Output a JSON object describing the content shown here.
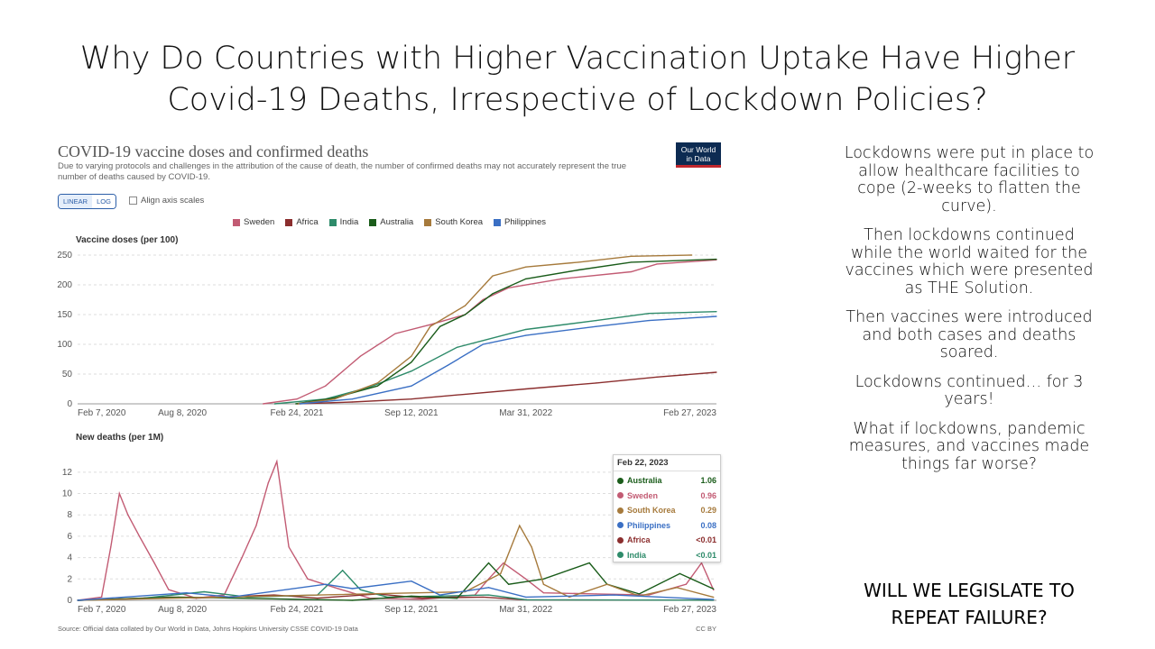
{
  "slide": {
    "title_line1": "Why Do Countries with Higher Vaccination Uptake Have Higher",
    "title_line2": "Covid-19 Deaths, Irrespective of Lockdown Policies?",
    "paragraphs": [
      "Lockdowns were put in place to allow healthcare facilities to cope (2-weeks to flatten the curve).",
      "Then lockdowns continued while the world waited for the vaccines which were presented as THE Solution.",
      "Then vaccines were introduced and both cases and deaths soared.",
      "Lockdowns continued… for 3 years!",
      "What if lockdowns, pandemic measures, and vaccines made things far worse?"
    ],
    "final_line1": "WILL WE LEGISLATE TO",
    "final_line2": "REPEAT FAILURE?"
  },
  "chart_panel": {
    "title": "COVID-19 vaccine doses and confirmed deaths",
    "subtitle": "Due to varying protocols and challenges in the attribution of the cause of death, the number of confirmed deaths may not accurately represent the true number of deaths caused by COVID-19.",
    "logo_line1": "Our World",
    "logo_line2": "in Data",
    "scale_linear": "LINEAR",
    "scale_log": "LOG",
    "align_axis_label": "Align axis scales",
    "source": "Source: Official data collated by Our World in Data, Johns Hopkins University CSSE COVID-19 Data",
    "license": "CC BY",
    "tooltip": {
      "date": "Feb 22, 2023",
      "rows": [
        {
          "name": "Australia",
          "value": "1.06",
          "color": "#1a5c1a"
        },
        {
          "name": "Sweden",
          "value": "0.96",
          "color": "#c25b73"
        },
        {
          "name": "South Korea",
          "value": "0.29",
          "color": "#a67a3c"
        },
        {
          "name": "Philippines",
          "value": "0.08",
          "color": "#3a6fc4"
        },
        {
          "name": "Africa",
          "value": "<0.01",
          "color": "#8b2e2e"
        },
        {
          "name": "India",
          "value": "<0.01",
          "color": "#2e8b6a"
        }
      ]
    }
  },
  "chart_data": [
    {
      "type": "line",
      "title": "Vaccine doses (per 100)",
      "x_ticks": [
        "Feb 7, 2020",
        "Aug 8, 2020",
        "Feb 24, 2021",
        "Sep 12, 2021",
        "Mar 31, 2022",
        "Feb 27, 2023"
      ],
      "x_range": [
        "2020-02-07",
        "2023-02-27"
      ],
      "ylim": [
        0,
        250
      ],
      "y_ticks": [
        0,
        50,
        100,
        150,
        200,
        250
      ],
      "grid": true,
      "series": [
        {
          "name": "Sweden",
          "color": "#c25b73",
          "points": [
            [
              "2020-12-27",
              0
            ],
            [
              "2021-02-24",
              8
            ],
            [
              "2021-04-15",
              30
            ],
            [
              "2021-06-15",
              80
            ],
            [
              "2021-08-15",
              118
            ],
            [
              "2021-10-15",
              133
            ],
            [
              "2021-12-15",
              150
            ],
            [
              "2022-01-15",
              175
            ],
            [
              "2022-03-01",
              195
            ],
            [
              "2022-06-01",
              210
            ],
            [
              "2022-10-01",
              222
            ],
            [
              "2022-11-15",
              235
            ],
            [
              "2023-02-27",
              242
            ]
          ]
        },
        {
          "name": "Africa",
          "color": "#8b2e2e",
          "points": [
            [
              "2021-02-24",
              0
            ],
            [
              "2021-06-01",
              3
            ],
            [
              "2021-09-12",
              8
            ],
            [
              "2021-12-15",
              16
            ],
            [
              "2022-03-31",
              25
            ],
            [
              "2022-08-01",
              35
            ],
            [
              "2022-11-15",
              45
            ],
            [
              "2023-02-27",
              53
            ]
          ]
        },
        {
          "name": "India",
          "color": "#2e8b6a",
          "points": [
            [
              "2021-01-16",
              0
            ],
            [
              "2021-04-15",
              8
            ],
            [
              "2021-07-01",
              28
            ],
            [
              "2021-09-12",
              55
            ],
            [
              "2021-12-01",
              95
            ],
            [
              "2022-03-31",
              125
            ],
            [
              "2022-08-01",
              140
            ],
            [
              "2022-11-01",
              152
            ],
            [
              "2023-02-27",
              155
            ]
          ]
        },
        {
          "name": "Australia",
          "color": "#1a5c1a",
          "points": [
            [
              "2021-02-22",
              0
            ],
            [
              "2021-05-01",
              10
            ],
            [
              "2021-07-15",
              30
            ],
            [
              "2021-09-12",
              70
            ],
            [
              "2021-11-01",
              130
            ],
            [
              "2021-12-15",
              150
            ],
            [
              "2022-02-01",
              185
            ],
            [
              "2022-03-31",
              210
            ],
            [
              "2022-07-01",
              225
            ],
            [
              "2022-10-01",
              238
            ],
            [
              "2023-02-27",
              243
            ]
          ]
        },
        {
          "name": "South Korea",
          "color": "#a67a3c",
          "points": [
            [
              "2021-02-26",
              0
            ],
            [
              "2021-05-01",
              8
            ],
            [
              "2021-07-15",
              35
            ],
            [
              "2021-09-12",
              80
            ],
            [
              "2021-10-15",
              130
            ],
            [
              "2021-12-15",
              165
            ],
            [
              "2022-02-01",
              215
            ],
            [
              "2022-03-31",
              230
            ],
            [
              "2022-07-01",
              238
            ],
            [
              "2022-10-01",
              248
            ],
            [
              "2023-01-15",
              250
            ]
          ]
        },
        {
          "name": "Philippines",
          "color": "#3a6fc4",
          "points": [
            [
              "2021-03-01",
              0
            ],
            [
              "2021-06-01",
              8
            ],
            [
              "2021-09-12",
              30
            ],
            [
              "2021-11-15",
              65
            ],
            [
              "2022-01-15",
              100
            ],
            [
              "2022-03-31",
              115
            ],
            [
              "2022-08-01",
              130
            ],
            [
              "2022-11-01",
              140
            ],
            [
              "2023-02-27",
              147
            ]
          ]
        }
      ]
    },
    {
      "type": "line",
      "title": "New deaths (per 1M)",
      "x_ticks": [
        "Feb 7, 2020",
        "Aug 8, 2020",
        "Feb 24, 2021",
        "Sep 12, 2021",
        "Mar 31, 2022",
        "Feb 27, 2023"
      ],
      "x_range": [
        "2020-02-07",
        "2023-02-27"
      ],
      "ylim": [
        0,
        13
      ],
      "y_ticks": [
        0,
        2,
        4,
        6,
        8,
        10,
        12
      ],
      "grid": true,
      "series": [
        {
          "name": "Sweden",
          "color": "#c25b73",
          "points": [
            [
              "2020-02-07",
              0
            ],
            [
              "2020-03-20",
              0.3
            ],
            [
              "2020-04-05",
              5
            ],
            [
              "2020-04-20",
              10
            ],
            [
              "2020-05-05",
              8
            ],
            [
              "2020-05-25",
              6
            ],
            [
              "2020-06-20",
              3.5
            ],
            [
              "2020-07-15",
              1
            ],
            [
              "2020-09-01",
              0.2
            ],
            [
              "2020-10-20",
              0.5
            ],
            [
              "2020-11-20",
              4
            ],
            [
              "2020-12-15",
              7
            ],
            [
              "2021-01-05",
              11
            ],
            [
              "2021-01-20",
              13
            ],
            [
              "2021-02-10",
              5
            ],
            [
              "2021-03-15",
              2
            ],
            [
              "2021-05-01",
              1.2
            ],
            [
              "2021-07-01",
              0.2
            ],
            [
              "2021-10-01",
              0.1
            ],
            [
              "2022-01-01",
              0.5
            ],
            [
              "2022-01-25",
              2
            ],
            [
              "2022-02-20",
              3.5
            ],
            [
              "2022-03-31",
              2
            ],
            [
              "2022-05-01",
              0.7
            ],
            [
              "2022-08-01",
              0.6
            ],
            [
              "2022-11-01",
              0.5
            ],
            [
              "2023-01-05",
              1.5
            ],
            [
              "2023-02-01",
              3.5
            ],
            [
              "2023-02-22",
              0.96
            ]
          ]
        },
        {
          "name": "Africa",
          "color": "#8b2e2e",
          "points": [
            [
              "2020-02-07",
              0
            ],
            [
              "2020-07-20",
              0.3
            ],
            [
              "2020-09-01",
              0.2
            ],
            [
              "2021-01-15",
              0.5
            ],
            [
              "2021-04-01",
              0.2
            ],
            [
              "2021-07-15",
              0.6
            ],
            [
              "2021-10-01",
              0.2
            ],
            [
              "2022-01-15",
              0.3
            ],
            [
              "2022-04-01",
              0.05
            ],
            [
              "2023-02-22",
              0.01
            ]
          ]
        },
        {
          "name": "India",
          "color": "#2e8b6a",
          "points": [
            [
              "2020-02-07",
              0
            ],
            [
              "2020-06-01",
              0.2
            ],
            [
              "2020-09-15",
              0.8
            ],
            [
              "2020-12-01",
              0.3
            ],
            [
              "2021-04-01",
              0.5
            ],
            [
              "2021-05-15",
              2.8
            ],
            [
              "2021-06-15",
              1
            ],
            [
              "2021-08-01",
              0.3
            ],
            [
              "2022-01-25",
              0.5
            ],
            [
              "2022-04-01",
              0.05
            ],
            [
              "2023-02-22",
              0.01
            ]
          ]
        },
        {
          "name": "Australia",
          "color": "#1a5c1a",
          "points": [
            [
              "2020-02-07",
              0
            ],
            [
              "2020-08-01",
              0.3
            ],
            [
              "2021-06-01",
              0
            ],
            [
              "2021-09-12",
              0.4
            ],
            [
              "2021-12-01",
              0.2
            ],
            [
              "2022-01-25",
              3.5
            ],
            [
              "2022-03-01",
              1.5
            ],
            [
              "2022-05-01",
              2
            ],
            [
              "2022-07-20",
              3.5
            ],
            [
              "2022-08-20",
              1.5
            ],
            [
              "2022-10-15",
              0.6
            ],
            [
              "2022-12-25",
              2.5
            ],
            [
              "2023-02-22",
              1.06
            ]
          ]
        },
        {
          "name": "South Korea",
          "color": "#a67a3c",
          "points": [
            [
              "2020-02-07",
              0
            ],
            [
              "2021-12-15",
              0.8
            ],
            [
              "2022-02-15",
              2.5
            ],
            [
              "2022-03-20",
              7
            ],
            [
              "2022-04-10",
              5
            ],
            [
              "2022-05-01",
              1.5
            ],
            [
              "2022-06-15",
              0.3
            ],
            [
              "2022-08-20",
              1.5
            ],
            [
              "2022-10-15",
              0.4
            ],
            [
              "2022-12-20",
              1.2
            ],
            [
              "2023-02-22",
              0.29
            ]
          ]
        },
        {
          "name": "Philippines",
          "color": "#3a6fc4",
          "points": [
            [
              "2020-02-07",
              0
            ],
            [
              "2020-08-15",
              0.7
            ],
            [
              "2020-11-01",
              0.3
            ],
            [
              "2021-04-15",
              1.5
            ],
            [
              "2021-06-01",
              1.1
            ],
            [
              "2021-09-12",
              1.8
            ],
            [
              "2021-11-01",
              0.5
            ],
            [
              "2022-01-25",
              1.2
            ],
            [
              "2022-03-31",
              0.3
            ],
            [
              "2022-09-01",
              0.5
            ],
            [
              "2023-02-22",
              0.08
            ]
          ]
        }
      ]
    }
  ]
}
